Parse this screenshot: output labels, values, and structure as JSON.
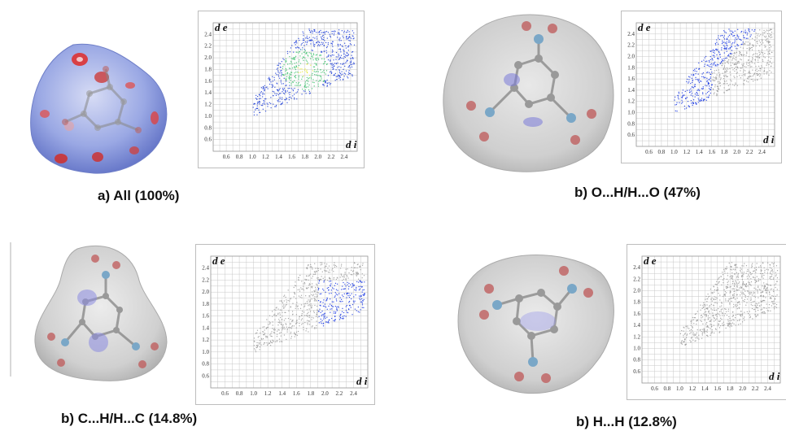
{
  "figure": {
    "panels": [
      {
        "id": "all",
        "caption": "a) All (100%)",
        "surface": "dnorm-colored",
        "x_axis_letter": "d i",
        "y_axis_letter": "d e",
        "highlight": "full",
        "colors": {
          "surface": "#8f9ee0",
          "spots": "#d63a3a",
          "fp_blue": "#1a3bd6",
          "fp_green": "#38c06a",
          "fp_yellow": "#e8e83a"
        }
      },
      {
        "id": "o-h",
        "caption": "b) O...H/H...O (47%)",
        "surface": "grey-transparent",
        "x_axis_letter": "d i",
        "y_axis_letter": "d e",
        "highlight": "wing"
      },
      {
        "id": "c-h",
        "caption": "b) C...H/H...C (14.8%)",
        "surface": "grey-transparent",
        "x_axis_letter": "d i",
        "y_axis_letter": "d e",
        "highlight": "side-lobe"
      },
      {
        "id": "h-h",
        "caption": "b) H...H (12.8%)",
        "surface": "grey-transparent",
        "x_axis_letter": "d i",
        "y_axis_letter": "d e",
        "highlight": "none"
      }
    ],
    "tick_labels": {
      "x": [
        "0.6",
        "0.8",
        "1.0",
        "1.2",
        "1.4",
        "1.6",
        "1.8",
        "2.0",
        "2.2",
        "2.4"
      ],
      "y": [
        "0.6",
        "0.8",
        "1.0",
        "1.2",
        "1.4",
        "1.6",
        "1.8",
        "2.0",
        "2.2",
        "2.4"
      ]
    },
    "colors": {
      "grey_points": "#9a9a9a",
      "highlight_blue": "#1535e0",
      "grid": "#c8c8c8",
      "atom_o": "#b55a5a",
      "atom_n": "#7aa7c7",
      "atom_c": "#8a8a8a"
    }
  }
}
